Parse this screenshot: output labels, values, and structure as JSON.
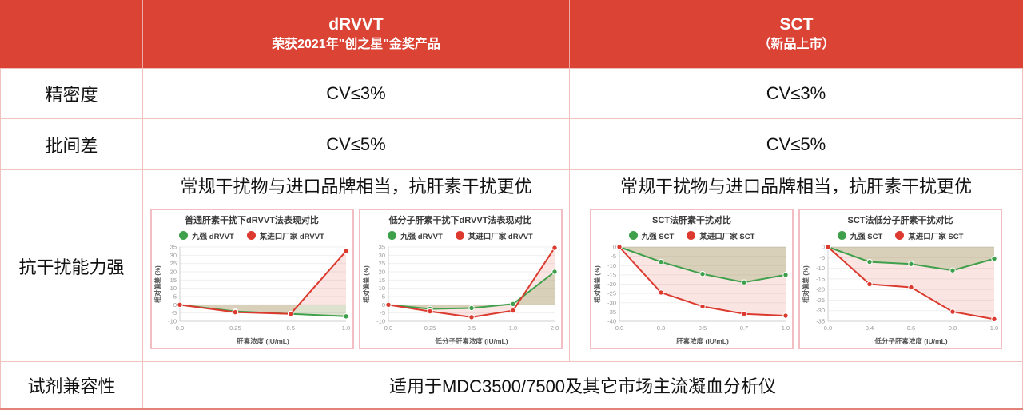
{
  "colors": {
    "header_red": "#DB4335",
    "cell_border": "#F0C2BE",
    "outer_border": "#E18378",
    "header_divider": "rgba(255,255,255,0.55)",
    "text_dark": "#1C1C1C",
    "chart_border": "#F2BDC3",
    "grid_line": "#EFEFEF",
    "zero_line": "#D9D9D9",
    "axis_line": "#CFCFCF",
    "tick_text": "#999999",
    "axis_title_text": "#555555"
  },
  "header": {
    "drvvt": {
      "title": "dRVVT",
      "subtitle": "荣获2021年\"创之星\"金奖产品"
    },
    "sct": {
      "title": "SCT",
      "subtitle": "（新品上市）"
    }
  },
  "rows": {
    "precision": {
      "label": "精密度",
      "drvvt": "CV≤3%",
      "sct": "CV≤3%"
    },
    "batch_variation": {
      "label": "批间差",
      "drvvt": "CV≤5%",
      "sct": "CV≤5%"
    },
    "interference": {
      "label": "抗干扰能力强",
      "drvvt_caption": "常规干扰物与进口品牌相当，抗肝素干扰更优",
      "sct_caption": "常规干扰物与进口品牌相当，抗肝素干扰更优"
    },
    "compatibility": {
      "label": "试剂兼容性",
      "value": "适用于MDC3500/7500及其它市场主流凝血分析仪"
    }
  },
  "chart_data": [
    {
      "type": "line",
      "title": "普通肝素干扰下dRVVT法表现对比",
      "xlabel": "肝素浓度 (IU/mL)",
      "ylabel": "相对偏差 (%)",
      "categories": [
        "0.0",
        "0.25",
        "0.5",
        "1.0"
      ],
      "ylim": [
        -10,
        35
      ],
      "ytick_step": 5,
      "grid": true,
      "legend_position": "top",
      "series": [
        {
          "name": "九强 dRVVT",
          "color": "#3FA04B",
          "fill": "rgba(141,158,94,0.30)",
          "values": [
            0,
            -4,
            -5.5,
            -7
          ]
        },
        {
          "name": "某进口厂家 dRVVT",
          "color": "#DC3A2E",
          "fill": "rgba(224,93,80,0.16)",
          "values": [
            0,
            -4.5,
            -5.5,
            32.5
          ]
        }
      ]
    },
    {
      "type": "line",
      "title": "低分子肝素干扰下dRVVT法表现对比",
      "xlabel": "低分子肝素浓度 (IU/mL)",
      "ylabel": "相对偏差 (%)",
      "categories": [
        "0.0",
        "0.25",
        "0.5",
        "1.0",
        "2.0"
      ],
      "ylim": [
        -10,
        35
      ],
      "ytick_step": 5,
      "grid": true,
      "legend_position": "top",
      "series": [
        {
          "name": "九强 dRVVT",
          "color": "#3FA04B",
          "fill": "rgba(141,158,94,0.30)",
          "values": [
            0,
            -2.5,
            -2,
            0.5,
            20
          ]
        },
        {
          "name": "某进口厂家 dRVVT",
          "color": "#DC3A2E",
          "fill": "rgba(224,93,80,0.16)",
          "values": [
            0,
            -4,
            -7.5,
            -3.5,
            34.5
          ]
        }
      ]
    },
    {
      "type": "line",
      "title": "SCT法肝素干扰对比",
      "xlabel": "肝素浓度 (IU/mL)",
      "ylabel": "相对偏差 (%)",
      "categories": [
        "0.0",
        "0.3",
        "0.5",
        "0.7",
        "1.0"
      ],
      "ylim": [
        -40,
        0
      ],
      "ytick_step": 5,
      "grid": true,
      "legend_position": "top",
      "series": [
        {
          "name": "九强 SCT",
          "color": "#3FA04B",
          "fill": "rgba(141,158,94,0.30)",
          "values": [
            0,
            -8,
            -14.5,
            -19,
            -15
          ]
        },
        {
          "name": "某进口厂家 SCT",
          "color": "#DC3A2E",
          "fill": "rgba(224,93,80,0.16)",
          "values": [
            0,
            -24.5,
            -32,
            -36,
            -37
          ]
        }
      ]
    },
    {
      "type": "line",
      "title": "SCT法低分子肝素干扰对比",
      "xlabel": "低分子肝素浓度 (IU/mL)",
      "ylabel": "相对偏差 (%)",
      "categories": [
        "0.0",
        "0.4",
        "0.6",
        "0.8",
        "1.0"
      ],
      "ylim": [
        -35,
        0
      ],
      "ytick_step": 5,
      "grid": true,
      "legend_position": "top",
      "series": [
        {
          "name": "九强 SCT",
          "color": "#3FA04B",
          "fill": "rgba(141,158,94,0.30)",
          "values": [
            0,
            -7,
            -8,
            -11,
            -5.5
          ]
        },
        {
          "name": "某进口厂家 SCT",
          "color": "#DC3A2E",
          "fill": "rgba(224,93,80,0.16)",
          "values": [
            0,
            -17.5,
            -19,
            -30.5,
            -34
          ]
        }
      ]
    }
  ]
}
